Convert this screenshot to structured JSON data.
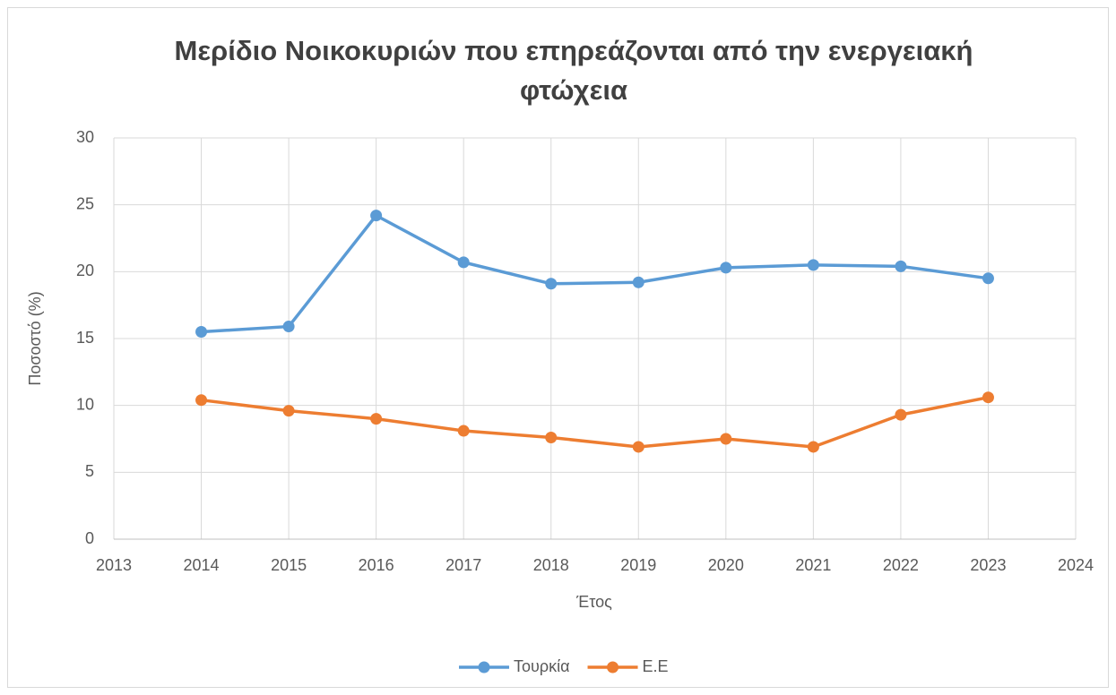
{
  "chart_data": {
    "type": "line",
    "title": "Μερίδιο Νοικοκυριών που επηρεάζονται από την ενεργειακή φτώχεια",
    "x_label": "Έτος",
    "y_label": "Ποσοστό (%)",
    "x": [
      2014,
      2015,
      2016,
      2017,
      2018,
      2019,
      2020,
      2021,
      2022,
      2023
    ],
    "series": [
      {
        "name": "Τουρκία",
        "color": "#5b9bd5",
        "values": [
          15.5,
          15.9,
          24.2,
          20.7,
          19.1,
          19.2,
          20.3,
          20.5,
          20.4,
          19.5
        ]
      },
      {
        "name": "Ε.Ε",
        "color": "#ed7d31",
        "values": [
          10.4,
          9.6,
          9.0,
          8.1,
          7.6,
          6.9,
          7.5,
          6.9,
          9.3,
          10.6
        ]
      }
    ],
    "xlim": [
      2013,
      2024
    ],
    "xticks": [
      2013,
      2014,
      2015,
      2016,
      2017,
      2018,
      2019,
      2020,
      2021,
      2022,
      2023,
      2024
    ],
    "ylim": [
      0,
      30
    ],
    "yticks": [
      0,
      5,
      10,
      15,
      20,
      25,
      30
    ],
    "grid": true,
    "legend": "bottom"
  }
}
